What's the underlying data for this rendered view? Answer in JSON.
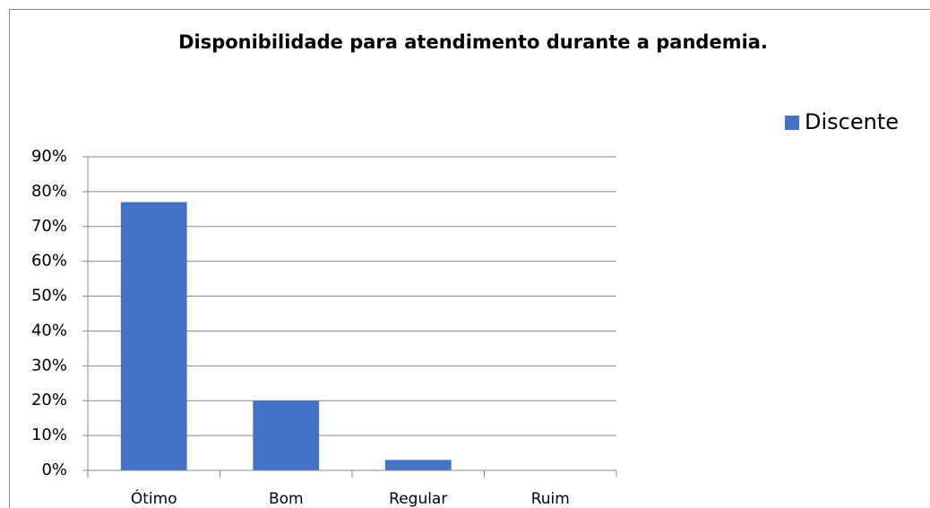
{
  "chart_data": {
    "type": "bar",
    "title": "Disponibilidade para atendimento durante a pandemia.",
    "categories": [
      "Ótimo",
      "Bom",
      "Regular",
      "Ruim"
    ],
    "series": [
      {
        "name": "Discente",
        "color": "#4472c4",
        "values": [
          77,
          20,
          3,
          0
        ]
      }
    ],
    "ylim": [
      0,
      90
    ],
    "yticks": [
      {
        "value": 0,
        "label": "0%"
      },
      {
        "value": 10,
        "label": "10%"
      },
      {
        "value": 20,
        "label": "20%"
      },
      {
        "value": 30,
        "label": "30%"
      },
      {
        "value": 40,
        "label": "40%"
      },
      {
        "value": 50,
        "label": "50%"
      },
      {
        "value": 60,
        "label": "60%"
      },
      {
        "value": 70,
        "label": "70%"
      },
      {
        "value": 80,
        "label": "80%"
      },
      {
        "value": 90,
        "label": "90%"
      }
    ],
    "grid": true,
    "legend": "top-right"
  }
}
